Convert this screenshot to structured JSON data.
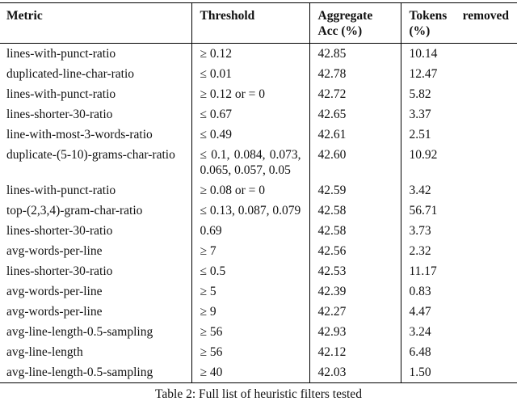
{
  "table": {
    "headers": {
      "metric": "Metric",
      "threshold": "Threshold",
      "aggregate_acc": "Aggregate Acc (%)",
      "tokens_removed": "Tokens removed (%)"
    },
    "rows": [
      {
        "metric": "lines-with-punct-ratio",
        "threshold": "≥ 0.12",
        "acc": "42.85",
        "tokens": "10.14"
      },
      {
        "metric": "duplicated-line-char-ratio",
        "threshold": "≤ 0.01",
        "acc": "42.78",
        "tokens": "12.47"
      },
      {
        "metric": "lines-with-punct-ratio",
        "threshold": "≥ 0.12 or = 0",
        "acc": "42.72",
        "tokens": "5.82"
      },
      {
        "metric": "lines-shorter-30-ratio",
        "threshold": "≤ 0.67",
        "acc": "42.65",
        "tokens": "3.37"
      },
      {
        "metric": "line-with-most-3-words-ratio",
        "threshold": "≤ 0.49",
        "acc": "42.61",
        "tokens": "2.51"
      },
      {
        "metric": "duplicate-(5-10)-grams-char-ratio",
        "threshold": "≤ 0.1, 0.084, 0.073, 0.065, 0.057, 0.05",
        "acc": "42.60",
        "tokens": "10.92"
      },
      {
        "metric": "lines-with-punct-ratio",
        "threshold": "≥ 0.08 or = 0",
        "acc": "42.59",
        "tokens": "3.42"
      },
      {
        "metric": "top-(2,3,4)-gram-char-ratio",
        "threshold": "≤ 0.13, 0.087, 0.079",
        "acc": "42.58",
        "tokens": "56.71"
      },
      {
        "metric": "lines-shorter-30-ratio",
        "threshold": "0.69",
        "acc": "42.58",
        "tokens": "3.73"
      },
      {
        "metric": "avg-words-per-line",
        "threshold": "≥ 7",
        "acc": "42.56",
        "tokens": "2.32"
      },
      {
        "metric": "lines-shorter-30-ratio",
        "threshold": "≤ 0.5",
        "acc": "42.53",
        "tokens": "11.17"
      },
      {
        "metric": "avg-words-per-line",
        "threshold": "≥ 5",
        "acc": "42.39",
        "tokens": "0.83"
      },
      {
        "metric": "avg-words-per-line",
        "threshold": "≥ 9",
        "acc": "42.27",
        "tokens": "4.47"
      },
      {
        "metric": "avg-line-length-0.5-sampling",
        "threshold": "≥ 56",
        "acc": "42.93",
        "tokens": "3.24"
      },
      {
        "metric": "avg-line-length",
        "threshold": "≥ 56",
        "acc": "42.12",
        "tokens": "6.48"
      },
      {
        "metric": "avg-line-length-0.5-sampling",
        "threshold": "≥ 40",
        "acc": "42.03",
        "tokens": "1.50"
      }
    ],
    "caption": "Table 2: Full list of heuristic filters tested"
  }
}
